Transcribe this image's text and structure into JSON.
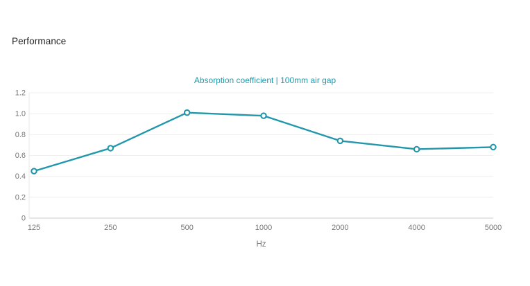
{
  "page": {
    "heading": "Performance"
  },
  "chart_data": {
    "type": "line",
    "title": "Absorption coefficient | 100mm air gap",
    "xlabel": "Hz",
    "ylabel": "",
    "categories": [
      "125",
      "250",
      "500",
      "1000",
      "2000",
      "4000",
      "5000"
    ],
    "series": [
      {
        "name": "Absorption coefficient",
        "values": [
          0.45,
          0.67,
          1.01,
          0.98,
          0.74,
          0.66,
          0.68
        ]
      }
    ],
    "ylim": [
      0,
      1.2
    ],
    "ytick_step": 0.2,
    "yticks": [
      "0",
      "0.2",
      "0.4",
      "0.6",
      "0.8",
      "1.0",
      "1.2"
    ],
    "grid": true,
    "legend_position": "none",
    "marker": "open-circle",
    "colors": {
      "line": "#2097ab",
      "marker_fill": "#ffffff",
      "title": "#2097ab",
      "grid": "#efefef",
      "y_axis_line": "#e7e7e7",
      "x_axis_line": "#cccccc",
      "tick_label": "#757575",
      "heading_text": "#1f1f1f"
    }
  }
}
